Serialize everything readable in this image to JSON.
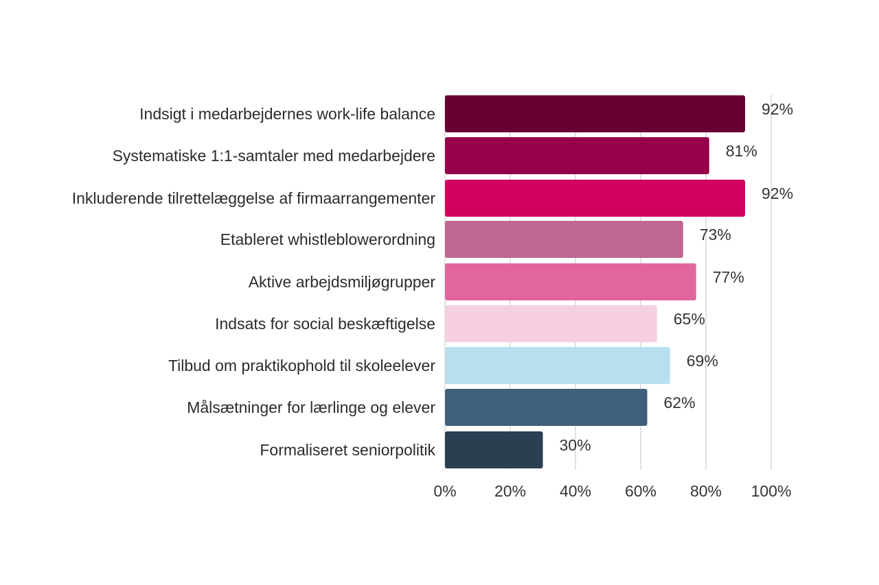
{
  "chart_data": {
    "type": "bar",
    "orientation": "horizontal",
    "categories": [
      "Indsigt i medarbejdernes work-life balance",
      "Systematiske 1:1-samtaler med medarbejdere",
      "Inkluderende tilrettelæggelse af firmaarrangementer",
      "Etableret whistleblowerordning",
      "Aktive arbejdsmiljøgrupper",
      "Indsats for social beskæftigelse",
      "Tilbud om praktikophold til skoleelever",
      "Målsætninger for lærlinge og elever",
      "Formaliseret seniorpolitik"
    ],
    "values": [
      92,
      81,
      92,
      73,
      77,
      65,
      69,
      62,
      30
    ],
    "value_labels": [
      "92%",
      "81%",
      "92%",
      "73%",
      "77%",
      "65%",
      "69%",
      "62%",
      "30%"
    ],
    "colors": [
      "#680033",
      "#96004a",
      "#d0005f",
      "#bf6691",
      "#e3659f",
      "#f6d0e1",
      "#b8dff0",
      "#3f5f7c",
      "#2b3e52"
    ],
    "xlim": [
      0,
      100
    ],
    "xticks": [
      0,
      20,
      40,
      60,
      80,
      100
    ],
    "xtick_labels": [
      "0%",
      "20%",
      "40%",
      "60%",
      "80%",
      "100%"
    ],
    "grid": "vertical",
    "legend": "none",
    "title": "",
    "xlabel": "",
    "ylabel": ""
  }
}
